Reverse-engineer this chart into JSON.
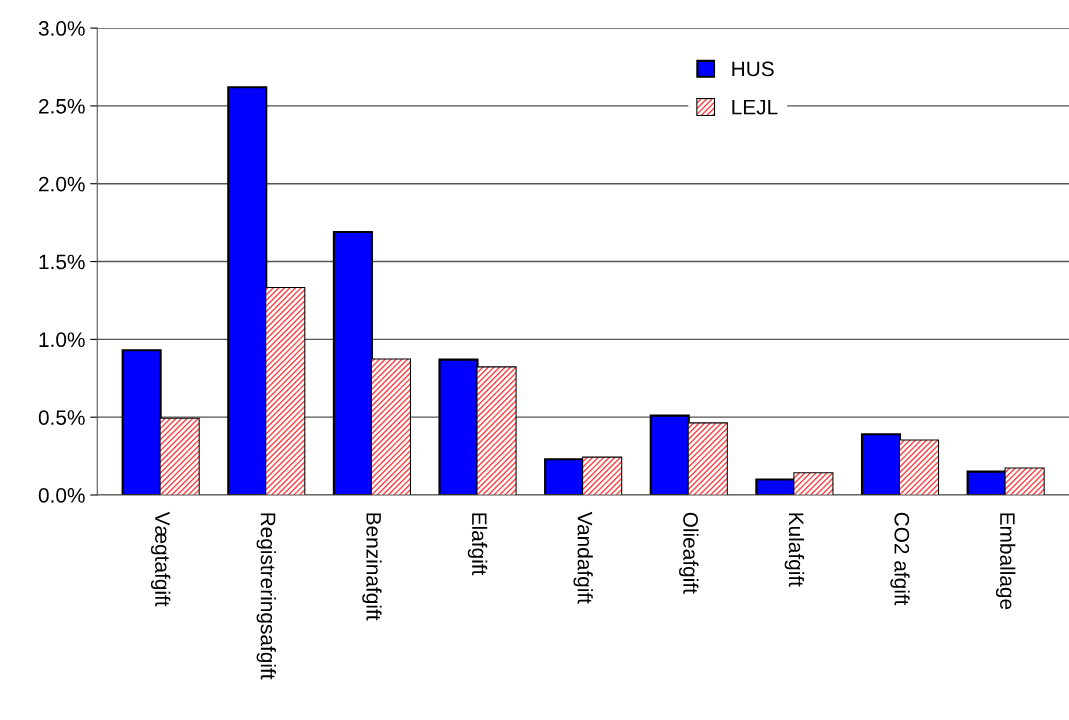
{
  "chart_data": {
    "type": "bar",
    "categories": [
      "Vægtafgift",
      "Registreringsafgift",
      "Benzinafgift",
      "Elafgift",
      "Vandafgift",
      "Olieafgift",
      "Kulafgift",
      "CO2 afgift",
      "Emballage"
    ],
    "series": [
      {
        "name": "HUS",
        "color": "#0000ff",
        "values": [
          0.93,
          2.62,
          1.69,
          0.87,
          0.23,
          0.51,
          0.1,
          0.39,
          0.15
        ]
      },
      {
        "name": "LEJL",
        "color": "#ff4040",
        "values": [
          0.49,
          1.33,
          0.87,
          0.82,
          0.24,
          0.46,
          0.14,
          0.35,
          0.17
        ]
      }
    ],
    "ylim": [
      0,
      3
    ],
    "yticks": [
      {
        "value": 0,
        "label": "0.0%"
      },
      {
        "value": 0.5,
        "label": "0.5%"
      },
      {
        "value": 1,
        "label": "1.0%"
      },
      {
        "value": 1.5,
        "label": "1.5%"
      },
      {
        "value": 2,
        "label": "2.0%"
      },
      {
        "value": 2.5,
        "label": "2.5%"
      },
      {
        "value": 3,
        "label": "3.0%"
      }
    ],
    "grid": "y",
    "legend": "top right"
  }
}
